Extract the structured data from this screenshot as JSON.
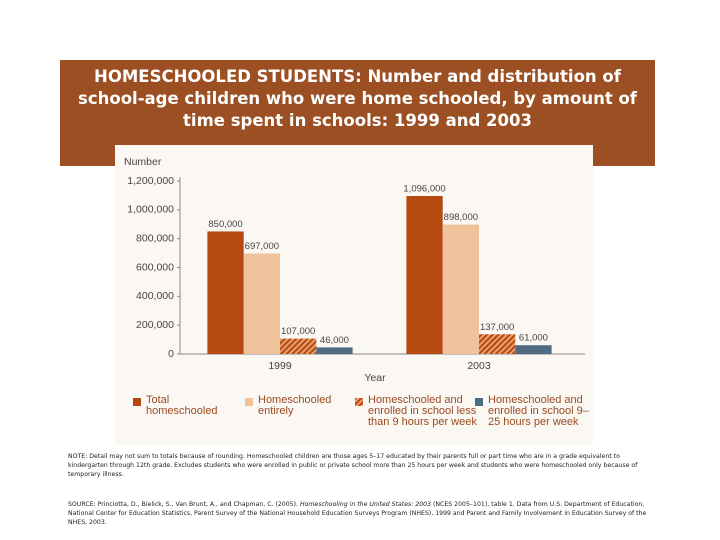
{
  "chart_data": {
    "type": "bar",
    "title": "HOMESCHOOLED STUDENTS: Number and distribution of school-age children who were home schooled, by amount of time spent in schools: 1999 and 2003",
    "y_label": "Number",
    "x_label": "Year",
    "categories": [
      "1999",
      "2003"
    ],
    "series": [
      {
        "name": "Total homeschooled",
        "color": "#b5490f",
        "values": [
          850000,
          1096000
        ],
        "value_labels": [
          "850,000",
          "1,096,000"
        ]
      },
      {
        "name": "Homeschooled entirely",
        "color": "#efc29c",
        "values": [
          697000,
          898000
        ],
        "value_labels": [
          "697,000",
          "898,000"
        ]
      },
      {
        "name": "Homeschooled and enrolled in school less than 9 hours per week",
        "color": "#c0551a",
        "hatch": true,
        "values": [
          107000,
          137000
        ],
        "value_labels": [
          "107,000",
          "137,000"
        ]
      },
      {
        "name": "Homeschooled and enrolled in school 9–25 hours per week",
        "color": "#4f6b84",
        "values": [
          46000,
          61000
        ],
        "value_labels": [
          "46,000",
          "61,000"
        ]
      }
    ],
    "ylim": [
      0,
      1200000
    ],
    "yticks": [
      0,
      {
        "value": 200000,
        "label": "200,000"
      },
      {
        "value": 400000,
        "label": "400,000"
      },
      {
        "value": 600000,
        "label": "600,000"
      },
      {
        "value": 800000,
        "label": "800,000"
      },
      {
        "value": 1000000,
        "label": "1,000,000"
      },
      {
        "value": 1200000,
        "label": "1,200,000"
      }
    ],
    "grid": false,
    "note": "NOTE: Detail may not sum to totals because of rounding. Homeschooled children are those ages 5–17 educated by their parents full or part time who are in a grade equivalent to kindergarten through 12th grade. Excludes students who were enrolled in public or private school more than 25 hours per week and students who were homeschooled only because of temporary illness.",
    "source": [
      "SOURCE: Princiotta, D., Bielick, S., Van Brunt, A., and Chapman, C. (2005). ",
      "Homeschooling in the United States: 2003",
      " (NCES 2005–101), table 1. Data from U.S. Department of Education, National Center for Education Statistics, Parent Survey of the National Household Education Surveys Program (NHES), 1999 and Parent and Family Involvement in Education Survey of the NHES, 2003."
    ]
  }
}
